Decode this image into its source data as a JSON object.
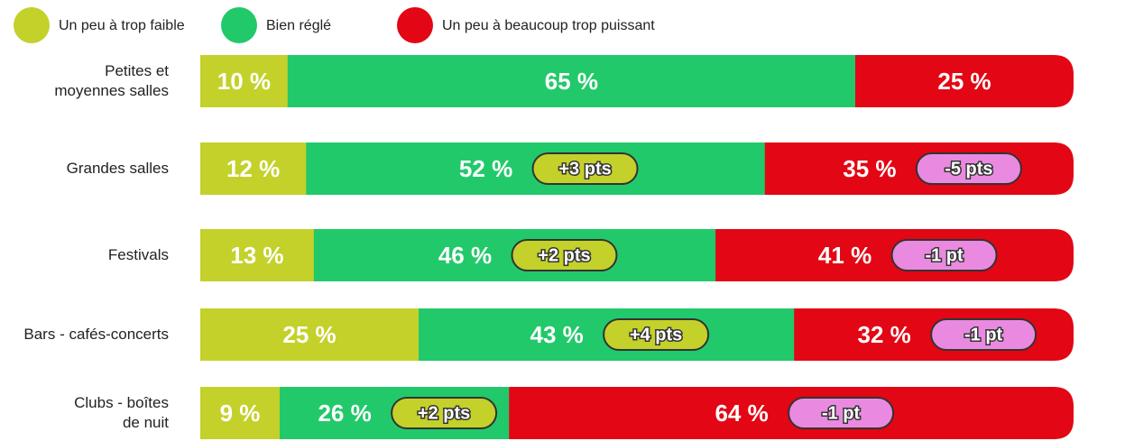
{
  "chart_data": {
    "type": "stacked-bar",
    "categories": [
      "Petites et\nmoyennes salles",
      "Grandes salles",
      "Festivals",
      "Bars - cafés-concerts",
      "Clubs - boîtes\nde nuit"
    ],
    "series": [
      {
        "name": "Un peu à trop faible",
        "color": "#c3d12a",
        "values": [
          10,
          12,
          13,
          25,
          9
        ],
        "value_labels": [
          "10 %",
          "12 %",
          "13 %",
          "25 %",
          "9 %"
        ],
        "change_labels": [
          null,
          null,
          null,
          null,
          null
        ]
      },
      {
        "name": "Bien réglé",
        "color": "#22c96a",
        "values": [
          65,
          52,
          46,
          43,
          26
        ],
        "value_labels": [
          "65 %",
          "52 %",
          "46 %",
          "43 %",
          "26 %"
        ],
        "change_labels": [
          null,
          "+3 pts",
          "+2 pts",
          "+4 pts",
          "+2 pts"
        ],
        "change_color": "#c3d12a"
      },
      {
        "name": "Un peu à beaucoup trop puissant",
        "color": "#e30614",
        "values": [
          25,
          35,
          41,
          32,
          64
        ],
        "value_labels": [
          "25 %",
          "35 %",
          "41 %",
          "32 %",
          "64 %"
        ],
        "change_labels": [
          null,
          "-5 pts",
          "-1 pt",
          "-1 pt",
          "-1 pt"
        ],
        "change_color": "#e98ae0"
      }
    ]
  }
}
